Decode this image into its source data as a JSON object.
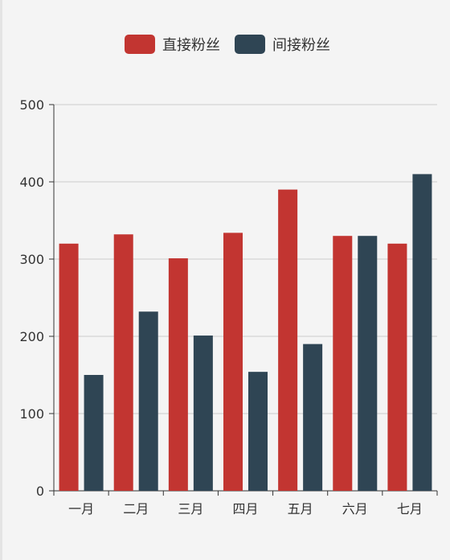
{
  "colors": {
    "series_direct": "#c23531",
    "series_indirect": "#2f4554",
    "axis": "#333333",
    "grid": "#cccccc",
    "background": "#f4f4f4"
  },
  "legend": {
    "items": [
      {
        "label": "直接粉丝",
        "color": "#c23531"
      },
      {
        "label": "间接粉丝",
        "color": "#2f4554"
      }
    ]
  },
  "chart_data": {
    "type": "bar",
    "categories": [
      "一月",
      "二月",
      "三月",
      "四月",
      "五月",
      "六月",
      "七月"
    ],
    "series": [
      {
        "name": "直接粉丝",
        "color": "#c23531",
        "values": [
          320,
          332,
          301,
          334,
          390,
          330,
          320
        ]
      },
      {
        "name": "间接粉丝",
        "color": "#2f4554",
        "values": [
          150,
          232,
          201,
          154,
          190,
          330,
          410
        ]
      }
    ],
    "ylim": [
      0,
      500
    ],
    "yticks": [
      "0",
      "100",
      "200",
      "300",
      "400",
      "500"
    ],
    "grid": true,
    "legend_position": "top-center"
  }
}
